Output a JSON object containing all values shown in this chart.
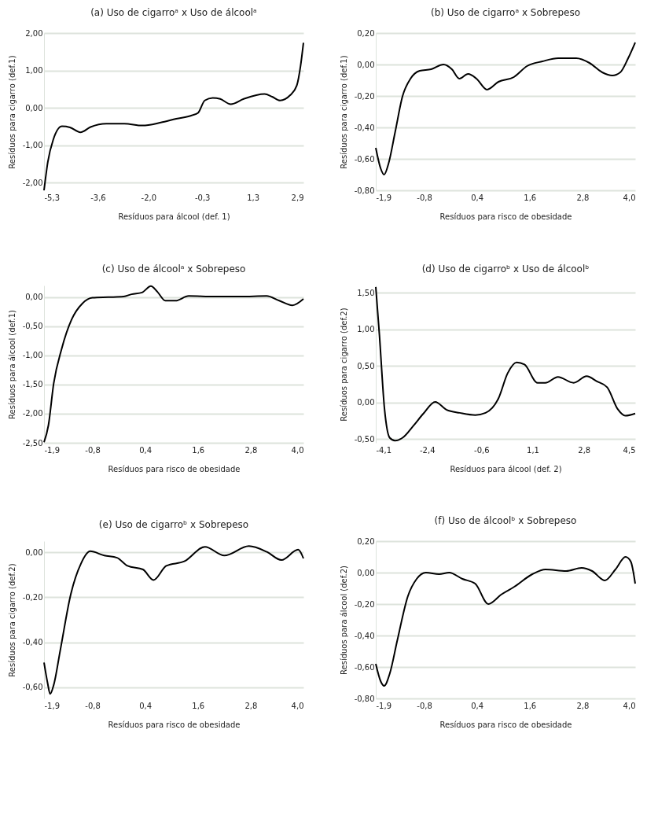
{
  "chart_data": [
    {
      "type": "line",
      "title": "(a) Uso de cigarroᵃ x Uso de álcoolᵃ",
      "xlabel": "Resíduos para álcool (def. 1)",
      "ylabel": "Resíduos para cigarro (def.1)",
      "color": "#000000",
      "grid": "y",
      "x": [
        -5.3,
        -5.18,
        -5.01,
        -4.73,
        -4.48,
        -4.15,
        -3.83,
        -3.33,
        -2.76,
        -2.19,
        -1.61,
        -1.12,
        -0.63,
        -0.43,
        -0.22,
        0.03,
        0.27,
        0.6,
        1.01,
        1.67,
        1.91,
        2.16,
        2.48,
        2.69,
        2.81,
        2.9
      ],
      "values": [
        -2.2,
        -1.44,
        -0.85,
        -0.49,
        -0.52,
        -0.65,
        -0.51,
        -0.42,
        -0.42,
        -0.47,
        -0.39,
        -0.29,
        -0.2,
        -0.13,
        0.2,
        0.27,
        0.24,
        0.1,
        0.24,
        0.37,
        0.3,
        0.2,
        0.34,
        0.6,
        1.13,
        1.74
      ],
      "xlim": [
        -5.3,
        2.9
      ],
      "xticks": [
        {
          "value": -5.3,
          "label": "-5,3"
        },
        {
          "value": -3.6,
          "label": "-3,6"
        },
        {
          "value": -2.0,
          "label": "-2,0"
        },
        {
          "value": -0.3,
          "label": "-0,3"
        },
        {
          "value": 1.3,
          "label": "1,3"
        },
        {
          "value": 2.9,
          "label": "2,9"
        }
      ],
      "ylim": [
        -2.2,
        2.0
      ],
      "yticks": [
        {
          "value": -2,
          "label": "-2,00"
        },
        {
          "value": -1,
          "label": "-1,00"
        },
        {
          "value": 0,
          "label": "0,00"
        },
        {
          "value": 1,
          "label": "1,00"
        },
        {
          "value": 2,
          "label": "2,00"
        }
      ]
    },
    {
      "type": "line",
      "title": "(b) Uso de cigarroᵃ x Sobrepeso",
      "xlabel": "Resíduos para risco de obesidade",
      "ylabel": "Resíduos para cigarro (def.1)",
      "color": "#000000",
      "grid": "y",
      "x": [
        -1.9,
        -1.79,
        -1.71,
        -1.61,
        -1.46,
        -1.29,
        -1.11,
        -0.9,
        -0.64,
        -0.36,
        -0.17,
        0.0,
        0.2,
        0.39,
        0.63,
        0.89,
        1.24,
        1.54,
        1.89,
        2.25,
        2.66,
        2.96,
        3.25,
        3.48,
        3.66,
        3.84,
        4.0
      ],
      "values": [
        -0.53,
        -0.66,
        -0.7,
        -0.63,
        -0.43,
        -0.2,
        -0.09,
        -0.04,
        -0.03,
        0.0,
        -0.03,
        -0.09,
        -0.06,
        -0.09,
        -0.16,
        -0.11,
        -0.08,
        -0.01,
        0.02,
        0.04,
        0.04,
        0.01,
        -0.05,
        -0.07,
        -0.05,
        0.04,
        0.14
      ],
      "xlim": [
        -1.9,
        4.0
      ],
      "xticks": [
        {
          "value": -1.9,
          "label": "-1,9"
        },
        {
          "value": -0.8,
          "label": "-0,8"
        },
        {
          "value": 0.4,
          "label": "0,4"
        },
        {
          "value": 1.6,
          "label": "1,6"
        },
        {
          "value": 2.8,
          "label": "2,8"
        },
        {
          "value": 4.0,
          "label": "4,0"
        }
      ],
      "ylim": [
        -0.8,
        0.2
      ],
      "yticks": [
        {
          "value": -0.8,
          "label": "-0,80"
        },
        {
          "value": -0.6,
          "label": "-0,60"
        },
        {
          "value": -0.4,
          "label": "-0,40"
        },
        {
          "value": -0.2,
          "label": "-0,20"
        },
        {
          "value": 0,
          "label": "0,00"
        },
        {
          "value": 0.2,
          "label": "0,20"
        }
      ]
    },
    {
      "type": "line",
      "title": "(c) Uso de álcoolᵃ x Sobrepeso",
      "xlabel": "Resíduos para risco de obesidade",
      "ylabel": "Resíduos para álcool (def.1)",
      "color": "#000000",
      "grid": "y",
      "x": [
        -1.9,
        -1.8,
        -1.68,
        -1.5,
        -1.27,
        -1.03,
        -0.8,
        -0.44,
        -0.09,
        0.09,
        0.33,
        0.53,
        0.68,
        0.86,
        1.09,
        1.39,
        1.98,
        2.57,
        3.16,
        3.45,
        3.75,
        4.0
      ],
      "values": [
        -2.49,
        -2.2,
        -1.48,
        -0.89,
        -0.38,
        -0.11,
        -0.01,
        0.0,
        0.01,
        0.05,
        0.08,
        0.19,
        0.09,
        -0.06,
        -0.06,
        0.02,
        0.01,
        0.01,
        0.02,
        -0.06,
        -0.14,
        -0.03
      ],
      "xlim": [
        -1.9,
        4.0
      ],
      "xticks": [
        {
          "value": -1.9,
          "label": "-1,9"
        },
        {
          "value": -0.8,
          "label": "-0,8"
        },
        {
          "value": 0.4,
          "label": "0,4"
        },
        {
          "value": 1.6,
          "label": "1,6"
        },
        {
          "value": 2.8,
          "label": "2,8"
        },
        {
          "value": 4.0,
          "label": "4,0"
        }
      ],
      "ylim": [
        -2.5,
        0.2
      ],
      "yticks": [
        {
          "value": -2.5,
          "label": "-2,50"
        },
        {
          "value": -2,
          "label": "-2,00"
        },
        {
          "value": -1.5,
          "label": "-1,50"
        },
        {
          "value": -1,
          "label": "-1,00"
        },
        {
          "value": -0.5,
          "label": "-0,50"
        },
        {
          "value": 0,
          "label": "0,00"
        }
      ]
    },
    {
      "type": "line",
      "title": "(d) Uso de cigarroᵇ x Uso de álcoolᵇ",
      "xlabel": "Resíduos para álcool (def. 2)",
      "ylabel": "Resíduos para cigarro (def.2)",
      "color": "#000000",
      "grid": "y",
      "x": [
        -4.1,
        -3.98,
        -3.81,
        -3.64,
        -3.46,
        -3.21,
        -2.86,
        -2.52,
        -2.13,
        -1.75,
        -1.32,
        -0.8,
        -0.46,
        -0.03,
        0.27,
        0.57,
        0.83,
        1.26,
        1.52,
        1.94,
        2.46,
        2.89,
        3.23,
        3.57,
        3.92,
        4.17,
        4.5
      ],
      "values": [
        1.58,
        0.93,
        -0.09,
        -0.48,
        -0.52,
        -0.48,
        -0.32,
        -0.15,
        0.01,
        -0.1,
        -0.14,
        -0.17,
        -0.14,
        0.06,
        0.4,
        0.55,
        0.52,
        0.27,
        0.27,
        0.35,
        0.27,
        0.36,
        0.29,
        0.21,
        -0.09,
        -0.18,
        -0.15
      ],
      "xlim": [
        -4.1,
        4.5
      ],
      "xticks": [
        {
          "value": -4.1,
          "label": "-4,1"
        },
        {
          "value": -2.4,
          "label": "-2,4"
        },
        {
          "value": -0.6,
          "label": "-0,6"
        },
        {
          "value": 1.1,
          "label": "1,1"
        },
        {
          "value": 2.8,
          "label": "2,8"
        },
        {
          "value": 4.5,
          "label": "4,5"
        }
      ],
      "ylim": [
        -0.55,
        1.6
      ],
      "yticks": [
        {
          "value": -0.5,
          "label": "-0,50"
        },
        {
          "value": 0,
          "label": "0,00"
        },
        {
          "value": 0.5,
          "label": "0,50"
        },
        {
          "value": 1,
          "label": "1,00"
        },
        {
          "value": 1.5,
          "label": "1,50"
        }
      ]
    },
    {
      "type": "line",
      "title": "(e) Uso de cigarroᵇ x Sobrepeso",
      "xlabel": "Resíduos para risco de obesidade",
      "ylabel": "Resíduos para cigarro (def.2)",
      "color": "#000000",
      "grid": "y",
      "x": [
        -1.9,
        -1.82,
        -1.76,
        -1.68,
        -1.53,
        -1.29,
        -1.06,
        -0.85,
        -0.53,
        -0.24,
        0.0,
        0.35,
        0.59,
        0.88,
        1.29,
        1.76,
        2.2,
        2.76,
        3.17,
        3.5,
        3.88,
        4.0
      ],
      "values": [
        -0.49,
        -0.58,
        -0.63,
        -0.59,
        -0.435,
        -0.185,
        -0.05,
        0.005,
        -0.014,
        -0.024,
        -0.06,
        -0.076,
        -0.123,
        -0.06,
        -0.04,
        0.025,
        -0.014,
        0.028,
        0.002,
        -0.034,
        0.012,
        -0.027
      ],
      "xlim": [
        -1.9,
        4.0
      ],
      "xticks": [
        {
          "value": -1.9,
          "label": "-1,9"
        },
        {
          "value": -0.8,
          "label": "-0,8"
        },
        {
          "value": 0.4,
          "label": "0,4"
        },
        {
          "value": 1.6,
          "label": "1,6"
        },
        {
          "value": 2.8,
          "label": "2,8"
        },
        {
          "value": 4.0,
          "label": "4,0"
        }
      ],
      "ylim": [
        -0.65,
        0.05
      ],
      "yticks": [
        {
          "value": -0.6,
          "label": "-0,60"
        },
        {
          "value": -0.4,
          "label": "-0,40"
        },
        {
          "value": -0.2,
          "label": "-0,20"
        },
        {
          "value": 0,
          "label": "0,00"
        }
      ]
    },
    {
      "type": "line",
      "title": "(f) Uso de álcoolᵇ x Sobrepeso",
      "xlabel": "Resíduos para risco de obesidade",
      "ylabel": "Resíduos para álcool (def.2)",
      "color": "#000000",
      "grid": "y",
      "x": [
        -1.9,
        -1.79,
        -1.71,
        -1.58,
        -1.41,
        -1.17,
        -0.97,
        -0.76,
        -0.46,
        -0.23,
        0.07,
        0.36,
        0.66,
        0.95,
        1.25,
        1.66,
        1.96,
        2.43,
        2.78,
        3.02,
        3.31,
        3.55,
        3.78,
        3.9,
        4.0
      ],
      "values": [
        -0.58,
        -0.69,
        -0.72,
        -0.64,
        -0.43,
        -0.15,
        -0.04,
        0.0,
        -0.01,
        0.0,
        -0.04,
        -0.07,
        -0.2,
        -0.14,
        -0.09,
        -0.01,
        0.02,
        0.01,
        0.03,
        0.01,
        -0.05,
        0.02,
        0.1,
        0.07,
        -0.07
      ],
      "xlim": [
        -1.9,
        4.0
      ],
      "xticks": [
        {
          "value": -1.9,
          "label": "-1,9"
        },
        {
          "value": -0.8,
          "label": "-0,8"
        },
        {
          "value": 0.4,
          "label": "0,4"
        },
        {
          "value": 1.6,
          "label": "1,6"
        },
        {
          "value": 2.8,
          "label": "2,8"
        },
        {
          "value": 4.0,
          "label": "4,0"
        }
      ],
      "ylim": [
        -0.8,
        0.2
      ],
      "yticks": [
        {
          "value": -0.8,
          "label": "-0,80"
        },
        {
          "value": -0.6,
          "label": "-0,60"
        },
        {
          "value": -0.4,
          "label": "-0,40"
        },
        {
          "value": -0.2,
          "label": "-0,20"
        },
        {
          "value": 0,
          "label": "0,00"
        },
        {
          "value": 0.2,
          "label": "0,20"
        }
      ]
    }
  ]
}
